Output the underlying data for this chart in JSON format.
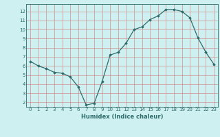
{
  "x": [
    0,
    1,
    2,
    3,
    4,
    5,
    6,
    7,
    8,
    9,
    10,
    11,
    12,
    13,
    14,
    15,
    16,
    17,
    18,
    19,
    20,
    21,
    22,
    23
  ],
  "y": [
    6.5,
    6.0,
    5.7,
    5.3,
    5.2,
    4.8,
    3.7,
    1.7,
    1.9,
    4.3,
    7.2,
    7.5,
    8.5,
    10.0,
    10.3,
    11.1,
    11.5,
    12.2,
    12.2,
    12.0,
    11.3,
    9.1,
    7.5,
    6.2
  ],
  "xlim": [
    -0.5,
    23.5
  ],
  "ylim": [
    1.5,
    12.8
  ],
  "yticks": [
    2,
    3,
    4,
    5,
    6,
    7,
    8,
    9,
    10,
    11,
    12
  ],
  "xticks": [
    0,
    1,
    2,
    3,
    4,
    5,
    6,
    7,
    8,
    9,
    10,
    11,
    12,
    13,
    14,
    15,
    16,
    17,
    18,
    19,
    20,
    21,
    22,
    23
  ],
  "xlabel": "Humidex (Indice chaleur)",
  "line_color": "#2e6b6b",
  "marker": "D",
  "marker_size": 1.8,
  "bg_color": "#cff0f0",
  "grid_color_v": "#d09090",
  "grid_color_h": "#d09090",
  "xlabel_color": "#2e6b6b",
  "tick_color": "#2e6b6b",
  "xlabel_fontsize": 6.0,
  "tick_fontsize": 5.0,
  "linewidth": 0.9
}
